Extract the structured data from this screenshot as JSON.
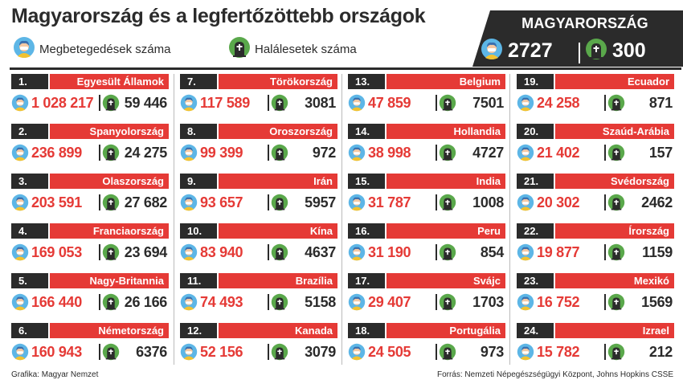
{
  "header": {
    "title": "Magyarország és a legfertőzöttebb országok",
    "legend_cases": "Megbetegedések száma",
    "legend_deaths": "Halálesetek száma",
    "icons": {
      "cases": "person-icon",
      "deaths": "tombstone-icon"
    }
  },
  "hungary": {
    "label": "MAGYARORSZÁG",
    "cases": "2727",
    "deaths": "300"
  },
  "colors": {
    "accent_red": "#e53a36",
    "dark": "#2b2b2b",
    "face": "#f5c9a3",
    "hair": "#3a6fae",
    "shirt": "#f2c230",
    "ring": "#5db6e6",
    "tomb_bg": "#5aa84b",
    "tomb": "#2b2b2b"
  },
  "countries": [
    {
      "rank": "1.",
      "name": "Egyesült Államok",
      "cases": "1 028 217",
      "deaths": "59 446"
    },
    {
      "rank": "2.",
      "name": "Spanyolország",
      "cases": "236 899",
      "deaths": "24 275"
    },
    {
      "rank": "3.",
      "name": "Olaszország",
      "cases": "203 591",
      "deaths": "27 682"
    },
    {
      "rank": "4.",
      "name": "Franciaország",
      "cases": "169 053",
      "deaths": "23 694"
    },
    {
      "rank": "5.",
      "name": "Nagy-Britannia",
      "cases": "166 440",
      "deaths": "26 166"
    },
    {
      "rank": "6.",
      "name": "Németország",
      "cases": "160 943",
      "deaths": "6376"
    },
    {
      "rank": "7.",
      "name": "Törökország",
      "cases": "117 589",
      "deaths": "3081"
    },
    {
      "rank": "8.",
      "name": "Oroszország",
      "cases": "99 399",
      "deaths": "972"
    },
    {
      "rank": "9.",
      "name": "Irán",
      "cases": "93 657",
      "deaths": "5957"
    },
    {
      "rank": "10.",
      "name": "Kína",
      "cases": "83 940",
      "deaths": "4637"
    },
    {
      "rank": "11.",
      "name": "Brazília",
      "cases": "74 493",
      "deaths": "5158"
    },
    {
      "rank": "12.",
      "name": "Kanada",
      "cases": "52 156",
      "deaths": "3079"
    },
    {
      "rank": "13.",
      "name": "Belgium",
      "cases": "47 859",
      "deaths": "7501"
    },
    {
      "rank": "14.",
      "name": "Hollandia",
      "cases": "38 998",
      "deaths": "4727"
    },
    {
      "rank": "15.",
      "name": "India",
      "cases": "31 787",
      "deaths": "1008"
    },
    {
      "rank": "16.",
      "name": "Peru",
      "cases": "31 190",
      "deaths": "854"
    },
    {
      "rank": "17.",
      "name": "Svájc",
      "cases": "29 407",
      "deaths": "1703"
    },
    {
      "rank": "18.",
      "name": "Portugália",
      "cases": "24 505",
      "deaths": "973"
    },
    {
      "rank": "19.",
      "name": "Ecuador",
      "cases": "24 258",
      "deaths": "871"
    },
    {
      "rank": "20.",
      "name": "Szaúd-Arábia",
      "cases": "21 402",
      "deaths": "157"
    },
    {
      "rank": "21.",
      "name": "Svédország",
      "cases": "20 302",
      "deaths": "2462"
    },
    {
      "rank": "22.",
      "name": "Írország",
      "cases": "19 877",
      "deaths": "1159"
    },
    {
      "rank": "23.",
      "name": "Mexikó",
      "cases": "16 752",
      "deaths": "1569"
    },
    {
      "rank": "24.",
      "name": "Izrael",
      "cases": "15 782",
      "deaths": "212"
    }
  ],
  "footer": {
    "credit": "Grafika: Magyar Nemzet",
    "source": "Forrás: Nemzeti Népegészségügyi Központ, Johns Hopkins CSSE"
  }
}
